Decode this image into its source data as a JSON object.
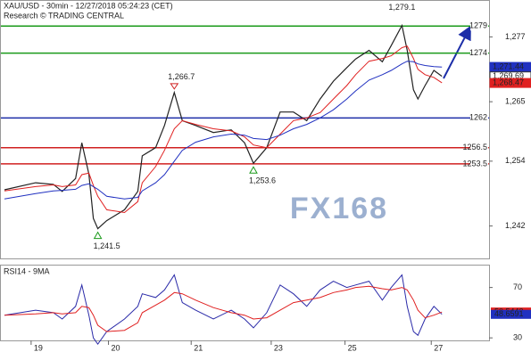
{
  "chart_data": {
    "type": "line",
    "title": "XAU/USD - 30min - 12/27/2018 05:24:23 (CET)",
    "subtitle": "Research © TRADING CENTRAL",
    "watermark": "FX168",
    "xlim": [
      0,
      110
    ],
    "xticks": [
      {
        "value": 7,
        "label": "19"
      },
      {
        "value": 24.4,
        "label": "20"
      },
      {
        "value": 43,
        "label": "21"
      },
      {
        "value": 61,
        "label": "23"
      },
      {
        "value": 77.6,
        "label": "25"
      },
      {
        "value": 97,
        "label": "27"
      }
    ],
    "ylim": [
      1236,
      1283
    ],
    "yticks": [
      {
        "value": 1242,
        "label": "1,242"
      },
      {
        "value": 1254,
        "label": "1,254"
      },
      {
        "value": 1265,
        "label": "1,265"
      },
      {
        "value": 1277,
        "label": "1,277"
      }
    ],
    "x": [
      1,
      8,
      12,
      14,
      17,
      18.4,
      20,
      21,
      22,
      24,
      28,
      31,
      32,
      35,
      37,
      39.2,
      41,
      44,
      48,
      52,
      55,
      57,
      60,
      63,
      66,
      69,
      72,
      75,
      78,
      80,
      83,
      86,
      88,
      90.4,
      91.6,
      93,
      94,
      95.6,
      97.6,
      99.4
    ],
    "series": [
      {
        "color": "#222222",
        "values": [
          1248.7,
          1250,
          1249.7,
          1248.4,
          1250.8,
          1257.4,
          1251.6,
          1243.4,
          1241.5,
          1243,
          1245,
          1248.4,
          1255,
          1256.5,
          1260.6,
          1266.7,
          1261.5,
          1260.6,
          1259.3,
          1259.8,
          1257.4,
          1253.6,
          1256.5,
          1263.1,
          1263.1,
          1261.5,
          1265.5,
          1268.8,
          1271.3,
          1272.9,
          1274.5,
          1272.4,
          1275.4,
          1279.1,
          1274.5,
          1267.2,
          1265.5,
          1268,
          1270.8,
          1269.7
        ]
      },
      {
        "color": "#e02020",
        "values": [
          1248.5,
          1249.3,
          1249.6,
          1249.3,
          1249.6,
          1251.5,
          1251.8,
          1249.5,
          1247.5,
          1245,
          1244.5,
          1246.5,
          1250,
          1253,
          1256,
          1260,
          1261.5,
          1260.8,
          1260,
          1259.6,
          1258.5,
          1257,
          1256.5,
          1259,
          1261.5,
          1262,
          1263,
          1265.5,
          1268,
          1270,
          1272.5,
          1273,
          1273.5,
          1275,
          1275.3,
          1273,
          1271,
          1270,
          1269.5,
          1268.5
        ]
      },
      {
        "color": "#2030c0",
        "values": [
          1247,
          1248,
          1248.5,
          1248.6,
          1248.8,
          1249.5,
          1249.8,
          1249.3,
          1248.8,
          1247.5,
          1247,
          1247.3,
          1248.5,
          1250,
          1251.5,
          1254,
          1256,
          1257.5,
          1258.5,
          1259,
          1258.8,
          1258.2,
          1258,
          1258.8,
          1260,
          1260.8,
          1262,
          1263.5,
          1265.5,
          1267,
          1269,
          1270,
          1270.8,
          1272,
          1272.5,
          1272.4,
          1272,
          1271.7,
          1271.5,
          1271.4
        ]
      }
    ],
    "levels": [
      {
        "value": 1279,
        "color": "#1a9a1a"
      },
      {
        "value": 1274,
        "color": "#1a9a1a"
      },
      {
        "value": 1262,
        "color": "#1c2ea8"
      },
      {
        "value": 1256.5,
        "color": "#d02020"
      },
      {
        "value": 1253.5,
        "color": "#d02020"
      }
    ],
    "annotations": [
      {
        "label": "1,279.1",
        "value": 1279.1,
        "x": 90.4
      },
      {
        "label": "1,266.7",
        "value": 1266.7,
        "x": 39.2,
        "marker": "down"
      },
      {
        "label": "1,253.6",
        "value": 1253.6,
        "x": 57,
        "marker": "up"
      },
      {
        "label": "1,241.5",
        "value": 1241.5,
        "x": 22,
        "marker": "up"
      }
    ],
    "current": [
      {
        "value": 1271.44,
        "label": "1,271.44",
        "color": "#2030c0"
      },
      {
        "value": 1269.69,
        "label": "1,269.69",
        "color": "#ffffff"
      },
      {
        "value": 1268.47,
        "label": "1,268.47",
        "color": "#e02020"
      }
    ],
    "rsi": {
      "label": "RSI14 - 9MA",
      "ylim": [
        28,
        86
      ],
      "yticks": [
        30,
        70
      ],
      "series": [
        {
          "color": "#2a2aa8",
          "values": [
            48,
            52,
            50,
            45,
            55,
            72,
            48,
            30,
            25,
            35,
            45,
            55,
            65,
            62,
            68,
            80,
            58,
            52,
            45,
            52,
            45,
            38,
            50,
            72,
            65,
            55,
            68,
            75,
            70,
            72,
            75,
            60,
            70,
            80,
            55,
            35,
            32,
            45,
            55,
            48.7
          ]
        },
        {
          "color": "#e02020",
          "values": [
            48,
            49,
            50,
            49,
            50,
            55,
            54,
            48,
            40,
            35,
            36,
            42,
            50,
            56,
            60,
            66,
            65,
            60,
            54,
            50,
            48,
            45,
            46,
            52,
            58,
            60,
            62,
            66,
            68,
            70,
            71,
            69,
            68,
            70,
            68,
            60,
            52,
            46,
            48,
            50.5
          ]
        }
      ],
      "current": [
        {
          "value": 50.5443,
          "color": "#e02020"
        },
        {
          "value": 48.6591,
          "color": "#2030c0"
        }
      ]
    }
  }
}
